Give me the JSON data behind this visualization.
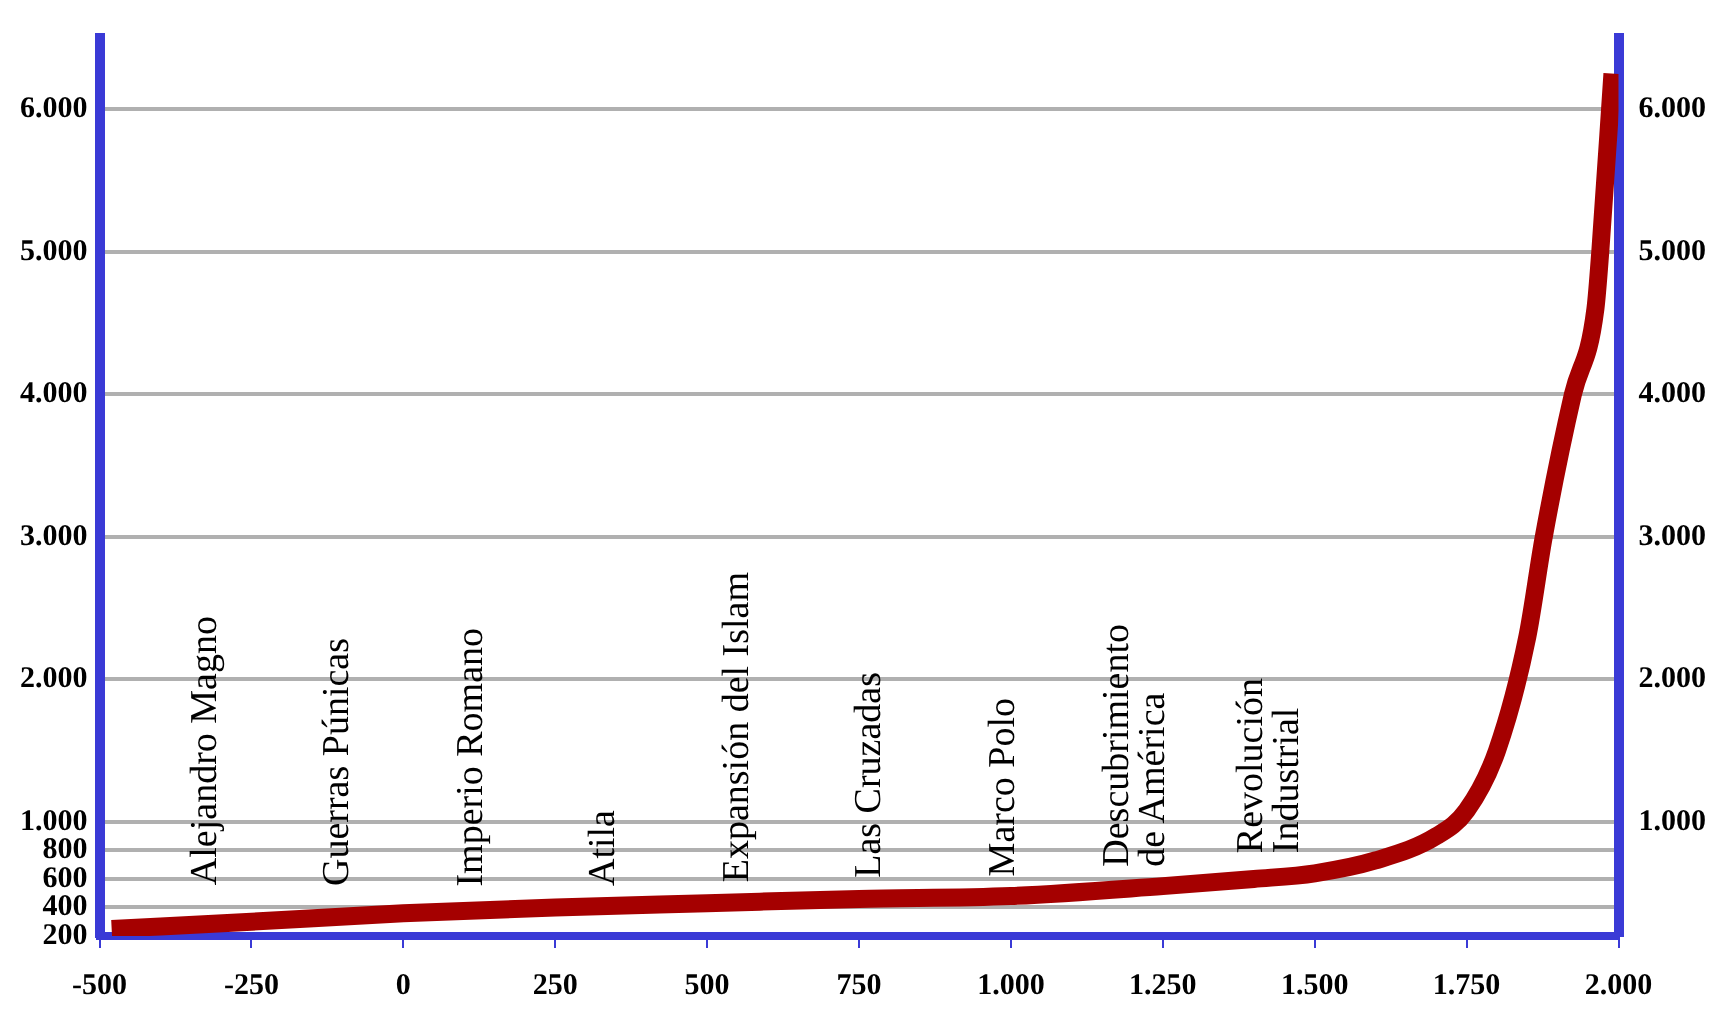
{
  "chart_data": {
    "type": "line",
    "x": [
      -480,
      -250,
      0,
      250,
      500,
      750,
      1000,
      1250,
      1400,
      1500,
      1600,
      1700,
      1750,
      1800,
      1850,
      1877,
      1925,
      1962,
      1970,
      1990
    ],
    "series": [
      {
        "color": "#a50000",
        "values": [
          250,
          300,
          360,
          400,
          430,
          460,
          480,
          550,
          600,
          640,
          730,
          900,
          1080,
          1500,
          2300,
          3000,
          4000,
          4600,
          5000,
          6250
        ]
      }
    ],
    "xlim": [
      -500,
      2000
    ],
    "xticks": [
      -500,
      -250,
      0,
      250,
      500,
      750,
      {
        "value": 1000,
        "label": "1.000"
      },
      {
        "value": 1250,
        "label": "1.250"
      },
      {
        "value": 1500,
        "label": "1.500"
      },
      {
        "value": 1750,
        "label": "1.750"
      },
      {
        "value": 2000,
        "label": "2.000"
      }
    ],
    "ylim": [
      200,
      6500
    ],
    "yticks": [
      200,
      400,
      600,
      800,
      {
        "value": 1000,
        "label": "1.000"
      },
      {
        "value": 2000,
        "label": "2.000"
      },
      {
        "value": 3000,
        "label": "3.000"
      },
      {
        "value": 4000,
        "label": "4.000"
      },
      {
        "value": 5000,
        "label": "5.000"
      },
      {
        "value": 6000,
        "label": "6.000"
      }
    ],
    "y2lim": [
      200,
      6500
    ],
    "y2ticks": [
      {
        "value": 1000,
        "label": "1.000"
      },
      {
        "value": 2000,
        "label": "2.000"
      },
      {
        "value": 3000,
        "label": "3.000"
      },
      {
        "value": 4000,
        "label": "4.000"
      },
      {
        "value": 5000,
        "label": "5.000"
      },
      {
        "value": 6000,
        "label": "6.000"
      }
    ],
    "grid": "y",
    "legend": false,
    "marker": "none",
    "line_style": "solid",
    "annotations": [
      "Alejandro Magno",
      "Guerras Púnicas",
      "Imperio Romano",
      "Atila",
      "Expansión del Islam",
      "Las Cruzadas",
      "Marco Polo",
      "Descubrimiento\nde América",
      "Revolución\nIndustrial"
    ]
  }
}
